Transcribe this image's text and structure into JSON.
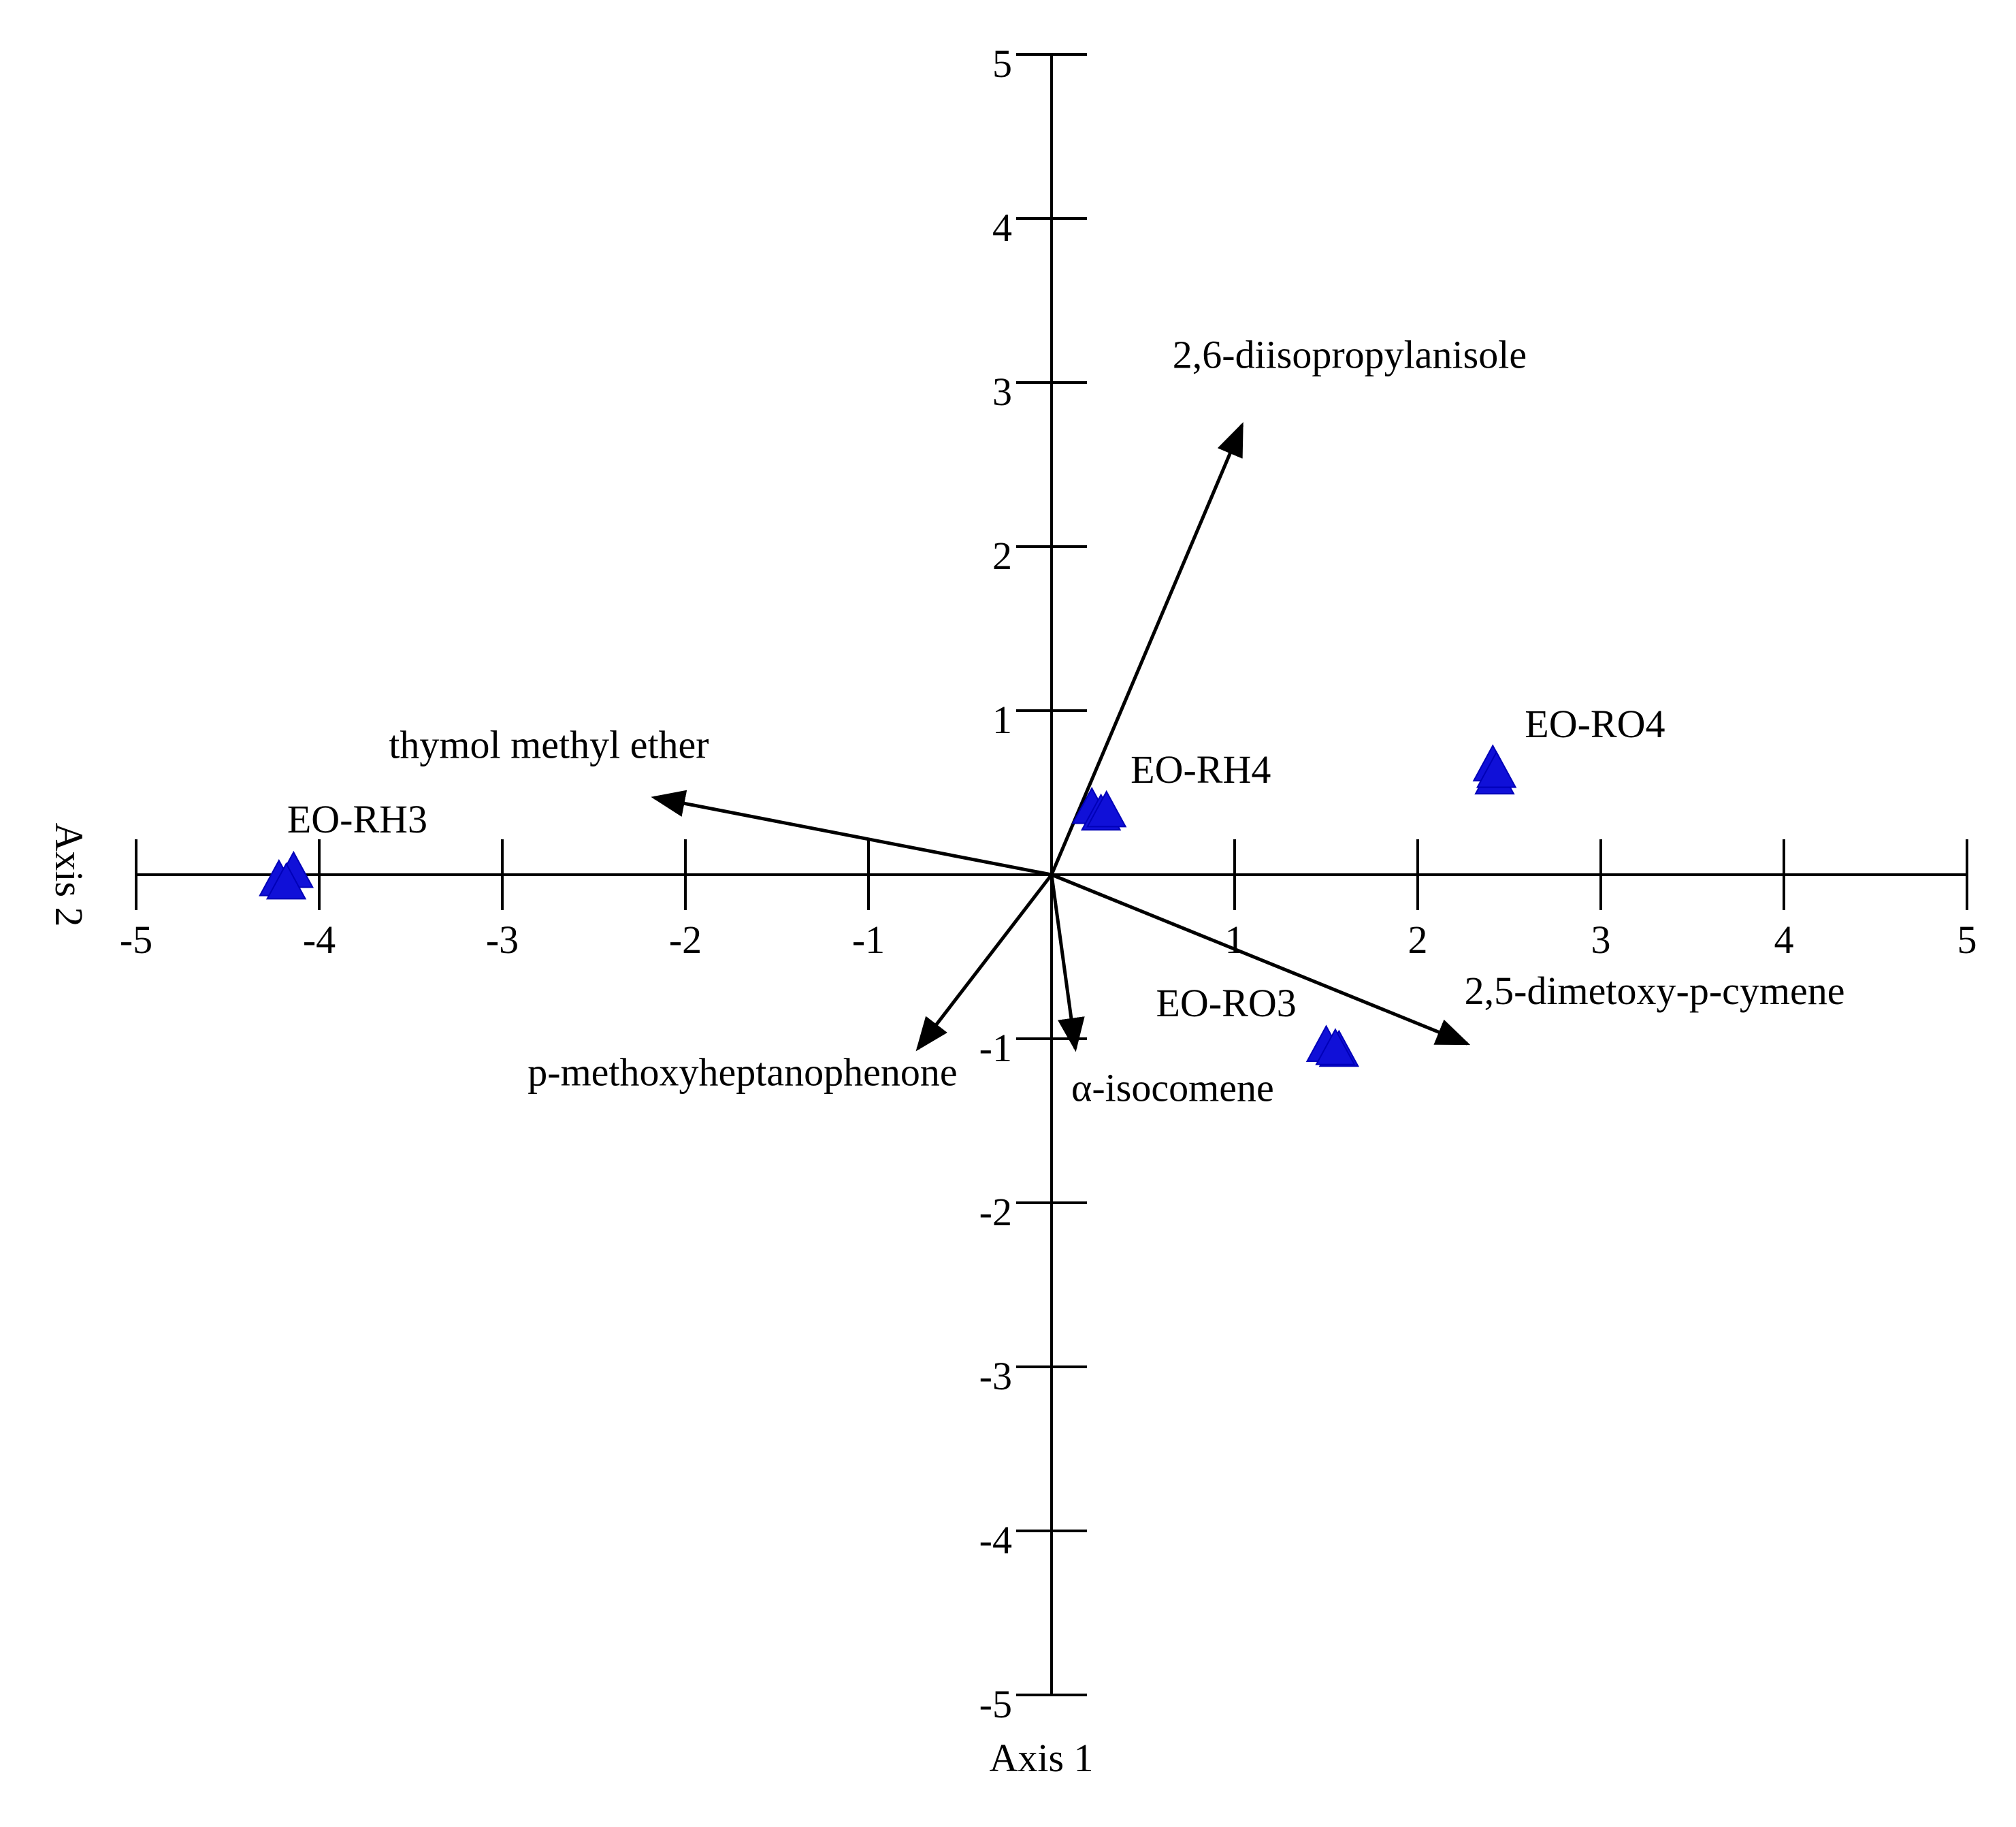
{
  "chart_data": {
    "type": "scatter",
    "title": "",
    "xlabel": "Axis 1",
    "ylabel": "Axis 2",
    "xlim": [
      -5,
      5
    ],
    "ylim": [
      -5,
      5
    ],
    "grid": false,
    "x_ticks": [
      -5,
      -4,
      -3,
      -2,
      -1,
      1,
      2,
      3,
      4,
      5
    ],
    "x_tick_labels": [
      "-5",
      "-4",
      "-3",
      "-2",
      "-1",
      "1",
      "2",
      "3",
      "4",
      "5"
    ],
    "y_ticks": [
      5,
      4,
      3,
      2,
      1,
      -1,
      -2,
      -3,
      -4,
      -5
    ],
    "y_tick_labels": [
      "5",
      "4",
      "3",
      "2",
      "1",
      "-1",
      "-2",
      "-3",
      "-4",
      "-5"
    ],
    "marker": "triangle",
    "marker_color": "#1010d8",
    "point_groups": [
      {
        "label": "EO-RH3",
        "points": [
          {
            "x": -4.22,
            "y": -0.02
          },
          {
            "x": -4.14,
            "y": 0.03
          },
          {
            "x": -4.18,
            "y": -0.04
          }
        ]
      },
      {
        "label": "EO-RH4",
        "points": [
          {
            "x": 0.22,
            "y": 0.42
          },
          {
            "x": 0.27,
            "y": 0.38
          },
          {
            "x": 0.3,
            "y": 0.4
          }
        ]
      },
      {
        "label": "EO-RO4",
        "points": [
          {
            "x": 2.41,
            "y": 0.68
          },
          {
            "x": 2.42,
            "y": 0.6
          },
          {
            "x": 2.43,
            "y": 0.64
          }
        ]
      },
      {
        "label": "EO-RO3",
        "points": [
          {
            "x": 1.5,
            "y": -1.03
          },
          {
            "x": 1.57,
            "y": -1.06
          },
          {
            "x": 1.55,
            "y": -1.05
          }
        ]
      }
    ],
    "vectors": [
      {
        "label": "2,6-diisopropylanisole",
        "x": 1.04,
        "y": 2.74
      },
      {
        "label": "thymol methyl ether",
        "x": -2.17,
        "y": 0.47
      },
      {
        "label": "2,5-dimetoxy-p-cymene",
        "x": 2.27,
        "y": -1.03
      },
      {
        "label": "p-methoxyheptanophenone",
        "x": -0.73,
        "y": -1.06
      },
      {
        "label": "α-isocomene",
        "x": 0.13,
        "y": -1.06
      }
    ]
  }
}
